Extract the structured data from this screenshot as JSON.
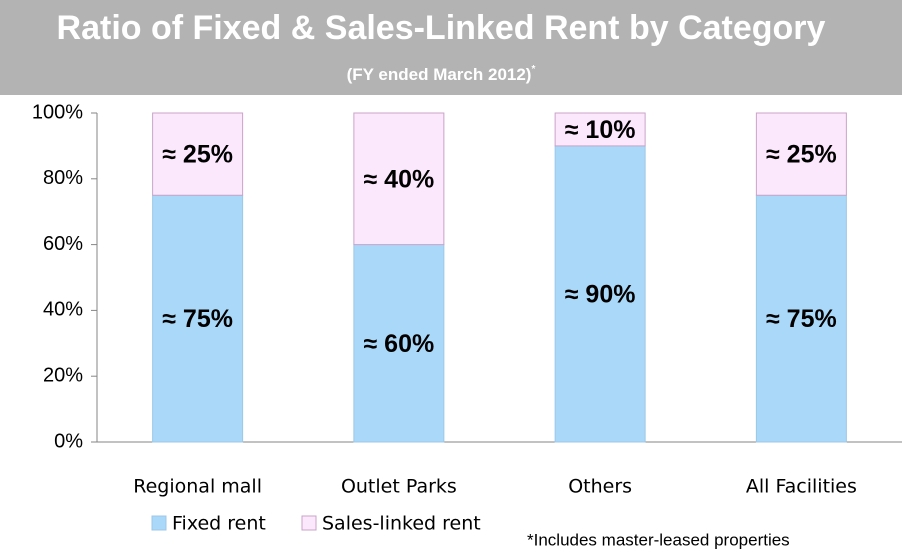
{
  "chart_data": {
    "type": "stacked_bar",
    "title": "Ratio of Fixed & Sales-Linked Rent by Category",
    "subtitle": "(FY ended March 2012)",
    "subtitle_mark": "*",
    "footnote": "*Includes master-leased properties",
    "categories": [
      "Regional mall",
      "Outlet Parks",
      "Others",
      "All Facilities"
    ],
    "series": [
      {
        "name": "Fixed rent",
        "color": "#aad8f8",
        "values": [
          75,
          60,
          90,
          75
        ],
        "value_labels": [
          "≈ 75%",
          "≈ 60%",
          "≈ 90%",
          "≈ 75%"
        ]
      },
      {
        "name": "Sales-linked rent",
        "color": "#fce8fc",
        "values": [
          25,
          40,
          10,
          25
        ],
        "value_labels": [
          "≈ 25%",
          "≈ 40%",
          "≈ 10%",
          "≈ 25%"
        ]
      }
    ],
    "ylim": [
      0,
      100
    ],
    "yticks": [
      {
        "value": 0,
        "label": "0%"
      },
      {
        "value": 20,
        "label": "20%"
      },
      {
        "value": 40,
        "label": "40%"
      },
      {
        "value": 60,
        "label": "60%"
      },
      {
        "value": 80,
        "label": "80%"
      },
      {
        "value": 100,
        "label": "100%"
      }
    ],
    "grid": false,
    "legend": "bottom"
  }
}
